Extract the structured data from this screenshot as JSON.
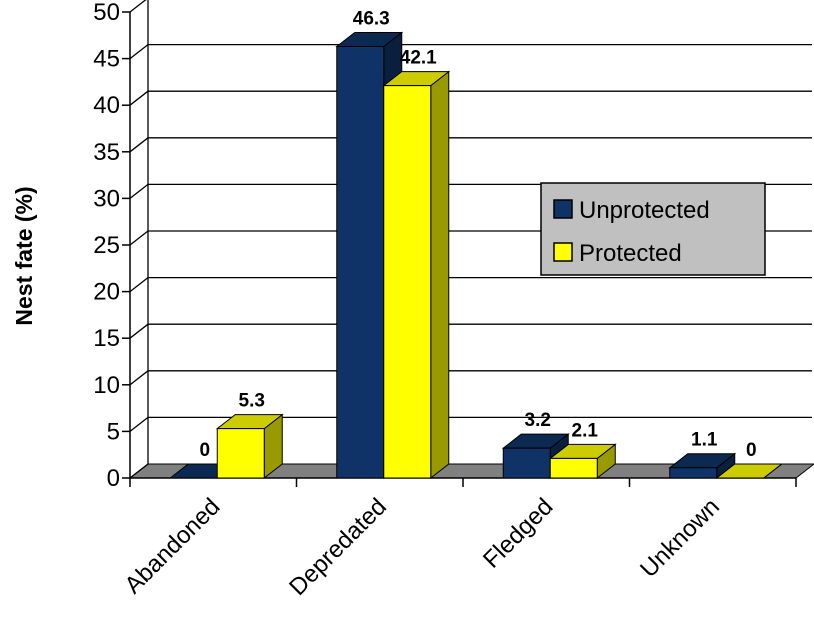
{
  "chart_data": {
    "type": "bar",
    "categories": [
      "Abandoned",
      "Depredated",
      "Fledged",
      "Unknown"
    ],
    "series": [
      {
        "name": "Unprotected",
        "color": "#0f3366",
        "values": [
          0,
          46.3,
          3.2,
          1.1
        ],
        "labels": [
          "0",
          "46.3",
          "3.2",
          "1.1"
        ]
      },
      {
        "name": "Protected",
        "color": "#ffff00",
        "values": [
          5.3,
          42.1,
          2.1,
          0
        ],
        "labels": [
          "5.3",
          "42.1",
          "2.1",
          "0"
        ]
      }
    ],
    "title": "",
    "xlabel": "",
    "ylabel": "Nest fate (%)",
    "ylim": [
      0,
      50
    ],
    "yticks": [
      0,
      5,
      10,
      15,
      20,
      25,
      30,
      35,
      40,
      45,
      50
    ],
    "grid": true,
    "three_d": true,
    "legend_position": "right",
    "floor_color": "#808080",
    "legend_bg": "#c0c0c0"
  }
}
